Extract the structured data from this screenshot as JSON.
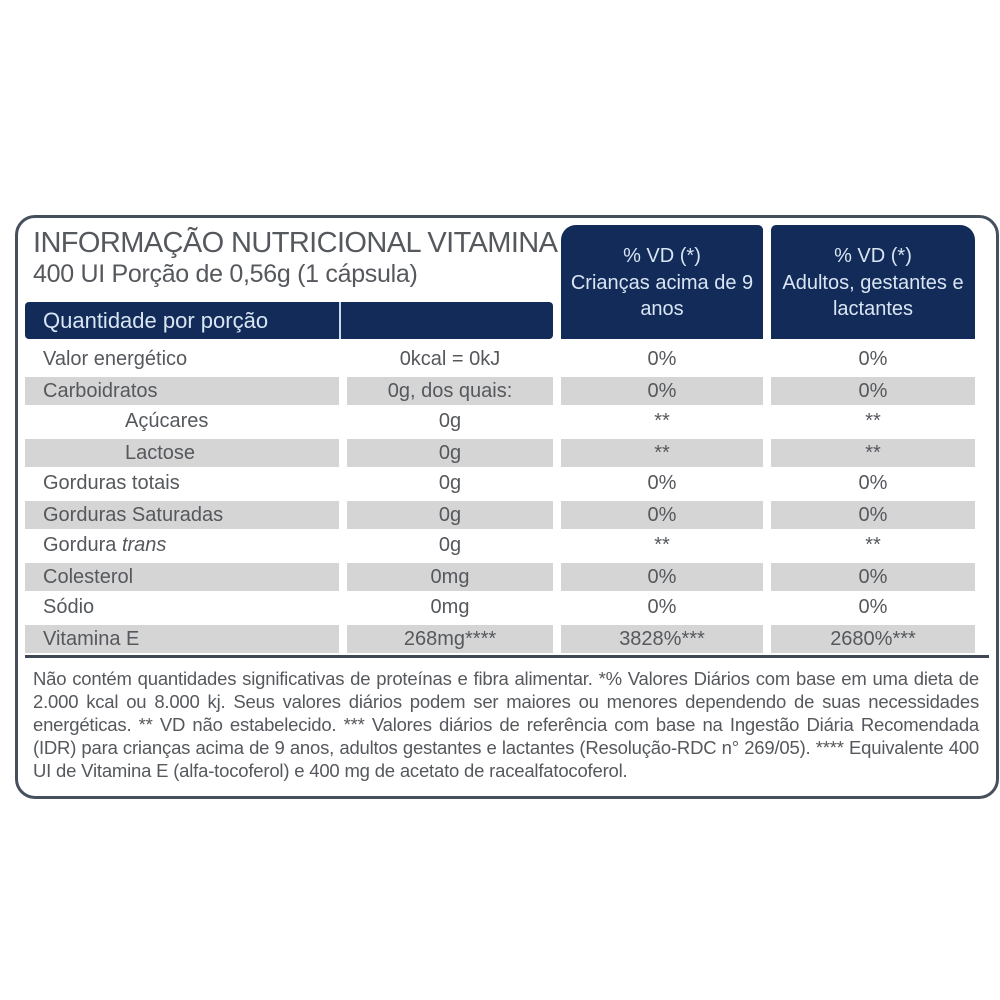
{
  "title": {
    "line1": "INFORMAÇÃO NUTRICIONAL VITAMINA E",
    "line2": "400 UI Porção de 0,56g (1 cápsula)"
  },
  "columns": {
    "quantity_header": "Quantidade por porção",
    "vd_children": {
      "line1": "% VD (*)",
      "line2": "Crianças acima de 9 anos"
    },
    "vd_adults": {
      "line1": "% VD (*)",
      "line2": "Adultos, gestantes e lactantes"
    }
  },
  "rows": [
    {
      "label": "Valor energético",
      "qty": "0kcal = 0kJ",
      "kids": "0%",
      "adults": "0%",
      "shaded": false,
      "indent": false
    },
    {
      "label": "Carboidratos",
      "qty": "0g, dos quais:",
      "kids": "0%",
      "adults": "0%",
      "shaded": true,
      "indent": false
    },
    {
      "label": "Açúcares",
      "qty": "0g",
      "kids": "**",
      "adults": "**",
      "shaded": false,
      "indent": true
    },
    {
      "label": "Lactose",
      "qty": "0g",
      "kids": "**",
      "adults": "**",
      "shaded": true,
      "indent": true
    },
    {
      "label": "Gorduras totais",
      "qty": "0g",
      "kids": "0%",
      "adults": "0%",
      "shaded": false,
      "indent": false
    },
    {
      "label": "Gorduras Saturadas",
      "qty": "0g",
      "kids": "0%",
      "adults": "0%",
      "shaded": true,
      "indent": false
    },
    {
      "label": "Gordura",
      "label_italic": "trans",
      "qty": "0g",
      "kids": "**",
      "adults": "**",
      "shaded": false,
      "indent": false
    },
    {
      "label": "Colesterol",
      "qty": "0mg",
      "kids": "0%",
      "adults": "0%",
      "shaded": true,
      "indent": false
    },
    {
      "label": "Sódio",
      "qty": "0mg",
      "kids": "0%",
      "adults": "0%",
      "shaded": false,
      "indent": false
    },
    {
      "label": "Vitamina E",
      "qty": "268mg****",
      "kids": "3828%***",
      "adults": "2680%***",
      "shaded": true,
      "indent": false
    }
  ],
  "footnote": "Não contém quantidades significativas de proteínas e fibra alimentar. *% Valores Diários com base em uma dieta de 2.000 kcal ou 8.000 kj. Seus valores diários podem ser maiores ou menores dependendo de suas necessidades energéticas. ** VD não estabelecido. *** Valores diários de referência com base na Ingestão Diária Recomendada (IDR) para crianças acima de 9 anos, adultos gestantes e lactantes  (Resolução-RDC n° 269/05). **** Equivalente 400 UI de Vitamina E (alfa-tocoferol) e 400 mg de acetato de racealfatocoferol.",
  "colors": {
    "navy": "#122b59",
    "navy_text": "#d9e5f3",
    "row_shaded": "#d5d5d5",
    "body_text": "#55585c",
    "border": "#46505c"
  }
}
